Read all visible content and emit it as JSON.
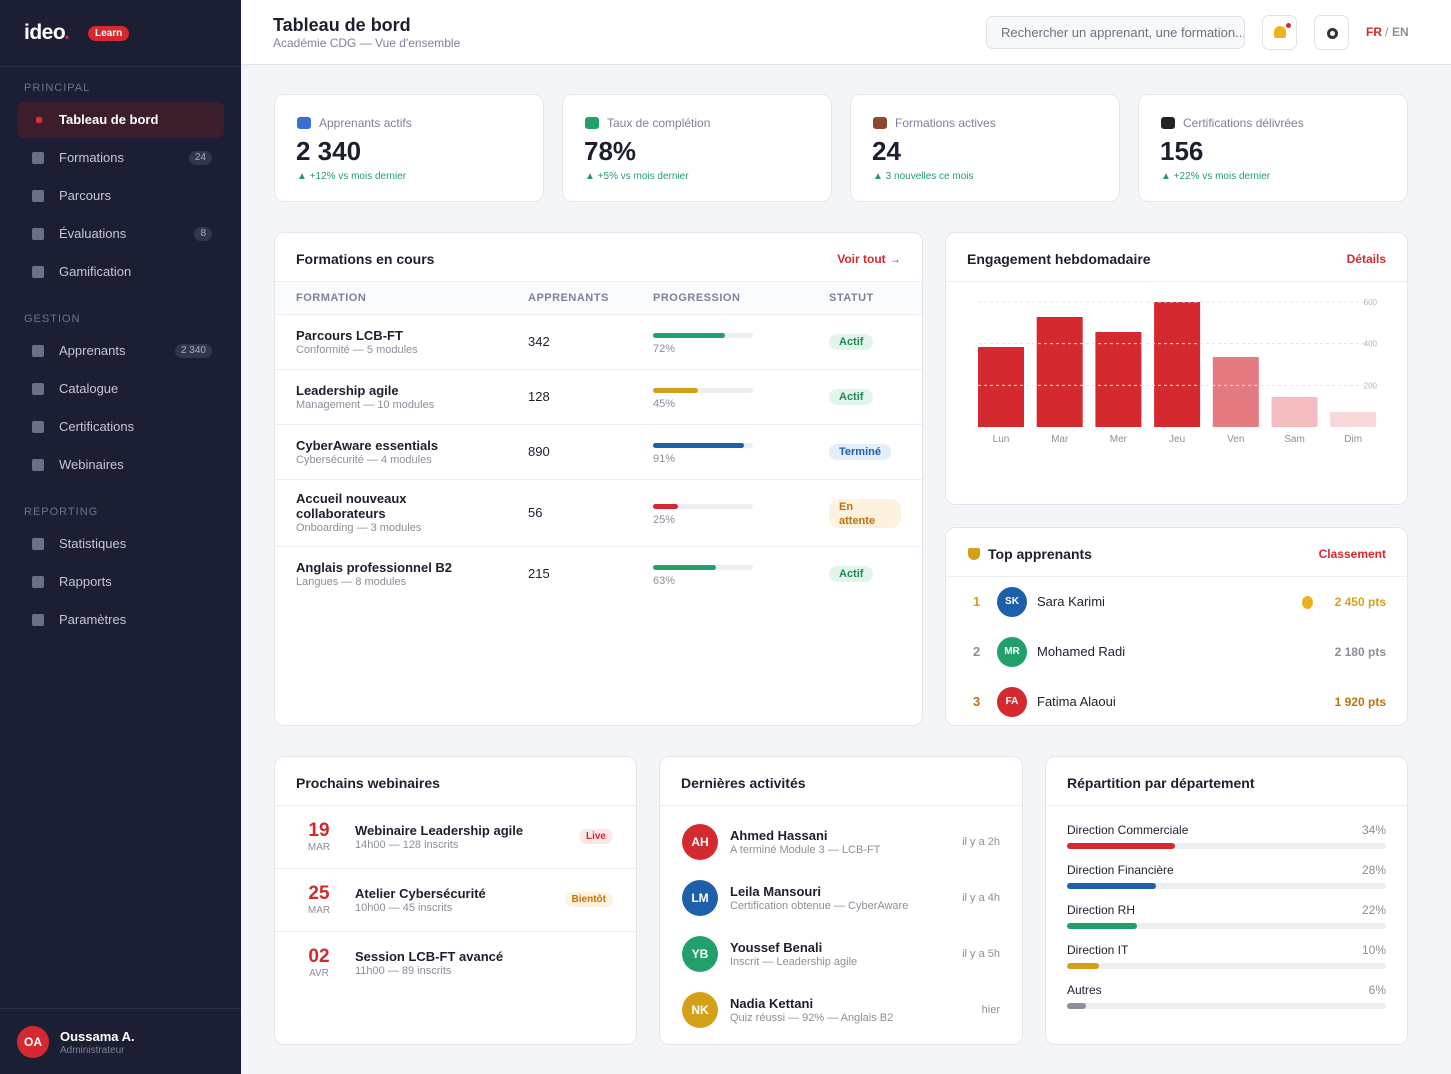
{
  "sidebar": {
    "logo": "ideo",
    "logo_dot": ".",
    "badge": "Learn",
    "sections": [
      {
        "title": "PRINCIPAL",
        "items": [
          {
            "label": "Tableau de bord",
            "active": true
          },
          {
            "label": "Formations",
            "count": 24
          },
          {
            "label": "Parcours"
          },
          {
            "label": "Évaluations",
            "count": 8
          },
          {
            "label": "Gamification"
          }
        ]
      },
      {
        "title": "GESTION",
        "items": [
          {
            "label": "Apprenants",
            "count": "2 340"
          },
          {
            "label": "Catalogue"
          },
          {
            "label": "Certifications"
          },
          {
            "label": "Webinaires"
          }
        ]
      },
      {
        "title": "REPORTING",
        "items": [
          {
            "label": "Statistiques"
          },
          {
            "label": "Rapports"
          },
          {
            "label": "Paramètres"
          }
        ]
      }
    ],
    "user": {
      "initials": "OA",
      "name": "Oussama A.",
      "role": "Administrateur"
    }
  },
  "header": {
    "title": "Tableau de bord",
    "subtitle": "Académie CDG — Vue d'ensemble",
    "search_placeholder": "Rechercher un apprenant, une formation...",
    "lang_active": "FR",
    "lang_sep": "/",
    "lang_other": "EN"
  },
  "kpis": [
    {
      "label": "Apprenants actifs",
      "value": "2 340",
      "delta": "▲ +12% vs mois dernier",
      "icon_color": "#3b6fd1"
    },
    {
      "label": "Taux de complétion",
      "value": "78%",
      "delta": "▲ +5% vs mois dernier",
      "icon_color": "#22a06b"
    },
    {
      "label": "Formations actives",
      "value": "24",
      "delta": "▲ 3 nouvelles ce mois",
      "icon_color": "#8b4a2b"
    },
    {
      "label": "Certifications délivrées",
      "value": "156",
      "delta": "▲ +22% vs mois dernier",
      "icon_color": "#222222"
    }
  ],
  "formations": {
    "title": "Formations en cours",
    "link": "Voir tout →",
    "columns": [
      "FORMATION",
      "APPRENANTS",
      "PROGRESSION",
      "STATUT"
    ],
    "rows": [
      {
        "name": "Parcours LCB-FT",
        "sub": "Conformité — 5 modules",
        "learners": 342,
        "progress": 72,
        "progress_label": "72%",
        "color": "#22a06b",
        "status": "Actif",
        "status_color": "#1f8a55",
        "status_bg": "#e3f5eb"
      },
      {
        "name": "Leadership agile",
        "sub": "Management — 10 modules",
        "learners": 128,
        "progress": 45,
        "progress_label": "45%",
        "color": "#d4a017",
        "status": "Actif",
        "status_color": "#1f8a55",
        "status_bg": "#e3f5eb"
      },
      {
        "name": "CyberAware essentials",
        "sub": "Cybersécurité — 4 modules",
        "learners": 890,
        "progress": 91,
        "progress_label": "91%",
        "color": "#1d5fa8",
        "status": "Terminé",
        "status_color": "#1d5fa8",
        "status_bg": "#e3eefa"
      },
      {
        "name": "Accueil nouveaux collaborateurs",
        "sub": "Onboarding — 3 modules",
        "learners": 56,
        "progress": 25,
        "progress_label": "25%",
        "color": "#d42a2f",
        "status": "En attente",
        "status_color": "#c0720a",
        "status_bg": "#fdf1e0"
      },
      {
        "name": "Anglais professionnel B2",
        "sub": "Langues — 8 modules",
        "learners": 215,
        "progress": 63,
        "progress_label": "63%",
        "color": "#22a06b",
        "status": "Actif",
        "status_color": "#1f8a55",
        "status_bg": "#e3f5eb"
      }
    ]
  },
  "engagement": {
    "title": "Engagement hebdomadaire",
    "link": "Détails",
    "type": "bar",
    "categories": [
      "Lun",
      "Mar",
      "Mer",
      "Jeu",
      "Ven",
      "Sam",
      "Dim"
    ],
    "values": [
      384,
      528,
      456,
      600,
      336,
      144,
      72
    ],
    "colors": [
      "#d42a2f",
      "#d42a2f",
      "#d42a2f",
      "#d42a2f",
      "#e57a80",
      "#f2bcc0",
      "#f8d7da"
    ],
    "ylim": [
      0,
      600
    ],
    "yticks": [
      200,
      400,
      600
    ],
    "grid": true
  },
  "top": {
    "title": "Top apprenants",
    "link": "Classement",
    "rows": [
      {
        "rank": 1,
        "initials": "SK",
        "name": "Sara Karimi",
        "points": "2 450 pts",
        "avatar": "#1d5fa8",
        "accent": "#d4a017"
      },
      {
        "rank": 2,
        "initials": "MR",
        "name": "Mohamed Radi",
        "points": "2 180 pts",
        "avatar": "#22a06b",
        "accent": "#8a8f99"
      },
      {
        "rank": 3,
        "initials": "FA",
        "name": "Fatima Alaoui",
        "points": "1 920 pts",
        "avatar": "#d42a2f",
        "accent": "#c0720a"
      }
    ]
  },
  "webinars": {
    "title": "Prochains webinaires",
    "rows": [
      {
        "day": "19",
        "month": "MAR",
        "name": "Webinaire Leadership agile",
        "meta": "14h00 — 128 inscrits",
        "tag": "Live",
        "tag_color": "#d42a2f",
        "tag_bg": "#fde8e8"
      },
      {
        "day": "25",
        "month": "MAR",
        "name": "Atelier Cybersécurité",
        "meta": "10h00 — 45 inscrits",
        "tag": "Bientôt",
        "tag_color": "#c0720a",
        "tag_bg": "#fdf3dc"
      },
      {
        "day": "02",
        "month": "AVR",
        "name": "Session LCB-FT avancé",
        "meta": "11h00 — 89 inscrits"
      }
    ]
  },
  "activities": {
    "title": "Dernières activités",
    "rows": [
      {
        "initials": "AH",
        "name": "Ahmed Hassani",
        "desc": "A terminé Module 3 — LCB-FT",
        "time": "il y a 2h",
        "avatar": "#d42a2f"
      },
      {
        "initials": "LM",
        "name": "Leila Mansouri",
        "desc": "Certification obtenue — CyberAware",
        "time": "il y a 4h",
        "avatar": "#1d5fa8"
      },
      {
        "initials": "YB",
        "name": "Youssef Benali",
        "desc": "Inscrit — Leadership agile",
        "time": "il y a 5h",
        "avatar": "#22a06b"
      },
      {
        "initials": "NK",
        "name": "Nadia Kettani",
        "desc": "Quiz réussi — 92% — Anglais B2",
        "time": "hier",
        "avatar": "#d4a017"
      }
    ]
  },
  "departments": {
    "title": "Répartition par département",
    "rows": [
      {
        "name": "Direction Commerciale",
        "value": 34,
        "value_label": "34%",
        "color": "#d42a2f"
      },
      {
        "name": "Direction Financière",
        "value": 28,
        "value_label": "28%",
        "color": "#1d5fa8"
      },
      {
        "name": "Direction RH",
        "value": 22,
        "value_label": "22%",
        "color": "#22a06b"
      },
      {
        "name": "Direction IT",
        "value": 10,
        "value_label": "10%",
        "color": "#d4a017"
      },
      {
        "name": "Autres",
        "value": 6,
        "value_label": "6%",
        "color": "#8a8f99"
      }
    ]
  }
}
